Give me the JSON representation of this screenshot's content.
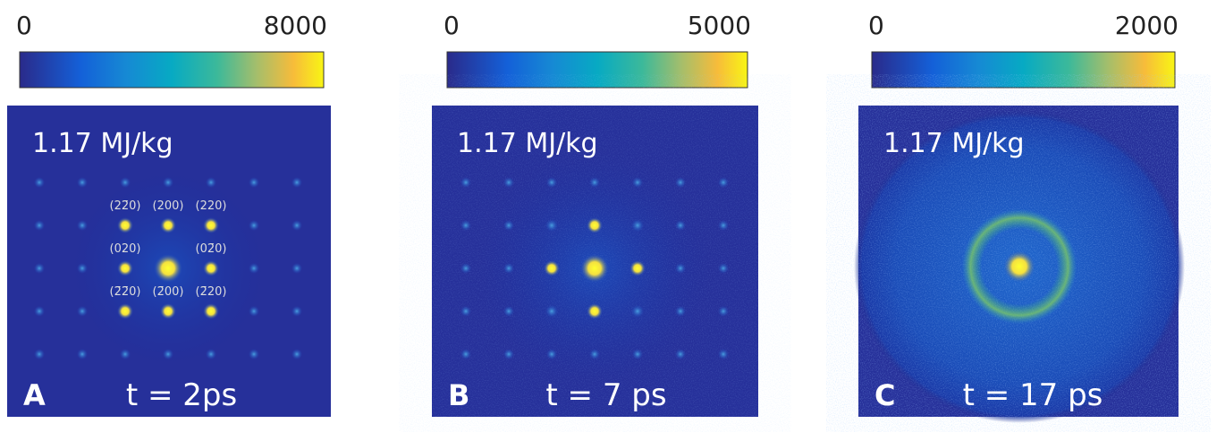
{
  "panels": [
    {
      "colorbar": {
        "min": 0,
        "max": 8000
      },
      "energy": "1.17 MJ/kg",
      "letter": "A",
      "time": "t = 2ps",
      "indices": [
        "(22̄0)",
        "(200)",
        "(220)",
        "(020)",
        "(02̄0)",
        "(2̄2̄0)",
        "(2̄00)",
        "(2̄20)"
      ]
    },
    {
      "colorbar": {
        "min": 0,
        "max": 5000
      },
      "energy": "1.17 MJ/kg",
      "letter": "B",
      "time": "t = 7 ps"
    },
    {
      "colorbar": {
        "min": 0,
        "max": 2000
      },
      "energy": "1.17 MJ/kg",
      "letter": "C",
      "time": "t = 17 ps"
    }
  ]
}
